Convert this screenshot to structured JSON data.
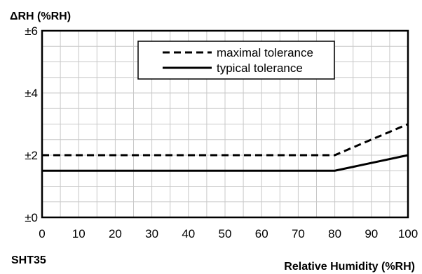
{
  "chart_data": {
    "type": "line",
    "ylabel": "ΔRH (%RH)",
    "xlabel": "Relative Humidity (%RH)",
    "corner_label": "SHT35",
    "xlim": [
      0,
      100
    ],
    "ylim": [
      0,
      6
    ],
    "x_ticks": [
      0,
      10,
      20,
      30,
      40,
      50,
      60,
      70,
      80,
      90,
      100
    ],
    "x_tick_labels": [
      "0",
      "10",
      "20",
      "30",
      "40",
      "50",
      "60",
      "70",
      "80",
      "90",
      "100"
    ],
    "y_ticks": [
      0,
      2,
      4,
      6
    ],
    "y_tick_labels": [
      "±0",
      "±2",
      "±4",
      "±6"
    ],
    "grid": true,
    "legend_position": "top-right",
    "series": [
      {
        "name": "maximal tolerance",
        "style": "dashed",
        "color": "#000000",
        "x": [
          0,
          80,
          100
        ],
        "y": [
          2,
          2,
          3
        ]
      },
      {
        "name": "typical tolerance",
        "style": "solid",
        "color": "#000000",
        "x": [
          0,
          80,
          100
        ],
        "y": [
          1.5,
          1.5,
          2
        ]
      }
    ]
  }
}
